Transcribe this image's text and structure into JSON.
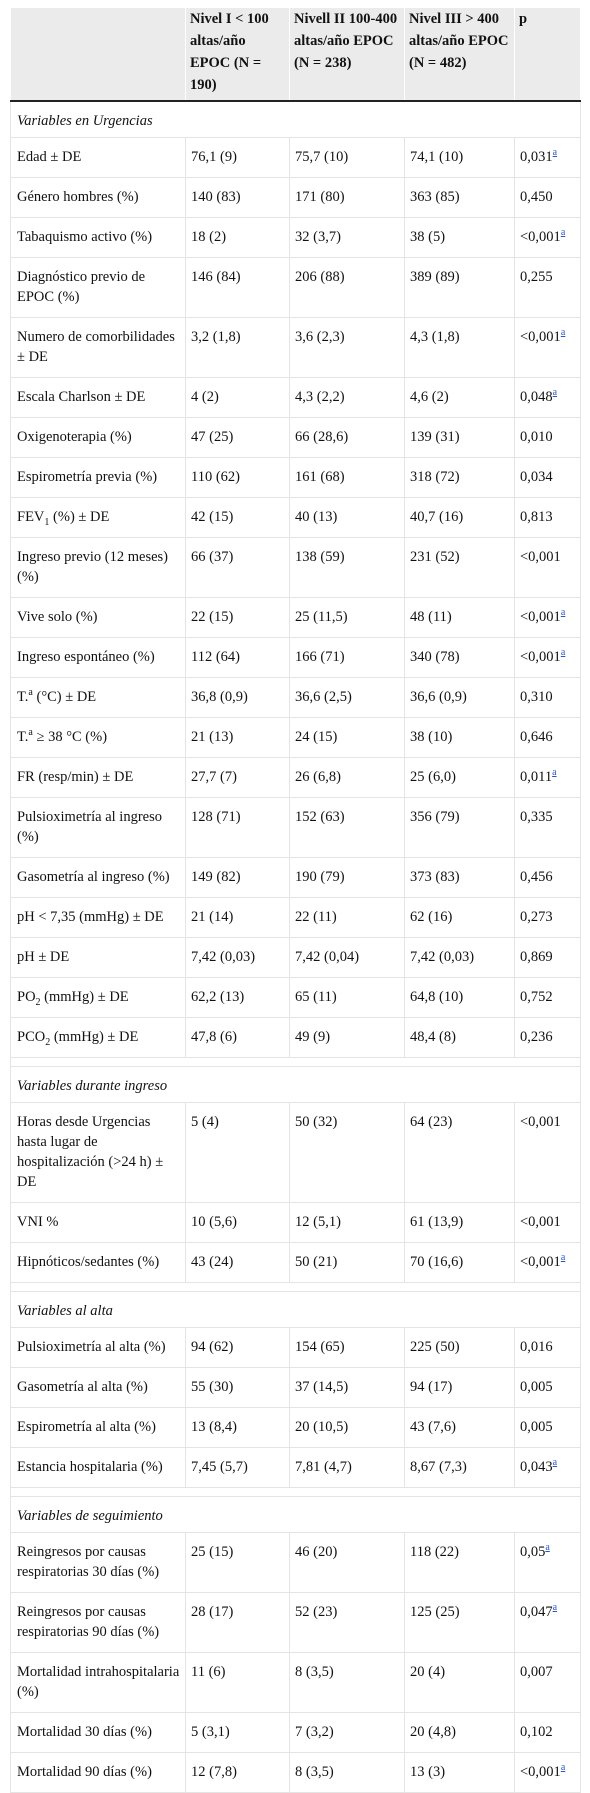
{
  "headers": [
    "",
    "Nivel I < 100 altas/año EPOC (N = 190)",
    "Nivell II 100-400 altas/año EPOC (N = 238)",
    "Nivel III > 400 altas/año EPOC",
    "p"
  ],
  "header_extra": "(N = 482)",
  "sections": [
    {
      "title": "Variables en Urgencias",
      "rows": [
        {
          "label": " Edad ± DE",
          "v": [
            "76,1 (9)",
            "75,7 (10)",
            "74,1 (10)"
          ],
          "p": "0,031",
          "fn": "a"
        },
        {
          "label": " Género hombres (%)",
          "v": [
            "140 (83)",
            "171 (80)",
            "363 (85)"
          ],
          "p": "0,450"
        },
        {
          "label": " Tabaquismo activo (%)",
          "v": [
            "18 (2)",
            "32 (3,7)",
            "38 (5)"
          ],
          "p": "<0,001",
          "fn": "a"
        },
        {
          "label": " Diagnóstico previo de EPOC (%)",
          "v": [
            "146 (84)",
            "206 (88)",
            "389 (89)"
          ],
          "p": "0,255"
        },
        {
          "label": " Numero de comorbilidades ± DE",
          "v": [
            "3,2 (1,8)",
            "3,6 (2,3)",
            "4,3 (1,8)"
          ],
          "p": "<0,001",
          "fn": "a"
        },
        {
          "label": " Escala Charlson ± DE",
          "v": [
            "4 (2)",
            "4,3 (2,2)",
            "4,6 (2)"
          ],
          "p": "0,048",
          "fn": "a"
        },
        {
          "label": " Oxigenoterapia (%)",
          "v": [
            "47 (25)",
            "66 (28,6)",
            "139 (31)"
          ],
          "p": "0,010"
        },
        {
          "label": " Espirometría previa (%)",
          "v": [
            "110 (62)",
            "161 (68)",
            "318 (72)"
          ],
          "p": "0,034"
        },
        {
          "label": " FEV",
          "sub": "1",
          "tail": " (%) ± DE",
          "v": [
            "42 (15)",
            "40 (13)",
            "40,7 (16)"
          ],
          "p": "0,813"
        },
        {
          "label": " Ingreso previo (12 meses) (%)",
          "v": [
            "66 (37)",
            "138 (59)",
            "231 (52)"
          ],
          "p": "<0,001"
        },
        {
          "label": " Vive solo (%)",
          "v": [
            "22 (15)",
            "25 (11,5)",
            "48 (11)"
          ],
          "p": "<0,001",
          "fn": "a"
        },
        {
          "label": " Ingreso espontáneo (%)",
          "v": [
            "112 (64)",
            "166 (71)",
            "340 (78)"
          ],
          "p": "<0,001",
          "fn": "a"
        },
        {
          "label": " T.",
          "sup": "a",
          "tail": " (°C) ± DE",
          "v": [
            "36,8 (0,9)",
            "36,6 (2,5)",
            "36,6 (0,9)"
          ],
          "p": "0,310"
        },
        {
          "label": " T.",
          "sup": "a",
          "tail": " ≥ 38 °C (%)",
          "v": [
            "21 (13)",
            "24 (15)",
            "38 (10)"
          ],
          "p": "0,646"
        },
        {
          "label": " FR (resp/min) ± DE",
          "v": [
            "27,7 (7)",
            "26 (6,8)",
            "25 (6,0)"
          ],
          "p": "0,011",
          "fn": "a"
        },
        {
          "label": " Pulsioximetría al ingreso (%)",
          "v": [
            "128 (71)",
            "152 (63)",
            "356 (79)"
          ],
          "p": "0,335"
        },
        {
          "label": " Gasometría al ingreso (%)",
          "v": [
            "149 (82)",
            "190 (79)",
            "373 (83)"
          ],
          "p": "0,456"
        },
        {
          "label": " pH < 7,35 (mmHg) ± DE",
          "v": [
            "21 (14)",
            "22 (11)",
            "62 (16)"
          ],
          "p": "0,273"
        },
        {
          "label": " pH ± DE",
          "v": [
            "7,42 (0,03)",
            "7,42 (0,04)",
            "7,42 (0,03)"
          ],
          "p": "0,869"
        },
        {
          "label": " PO",
          "sub": "2",
          "tail": " (mmHg) ± DE",
          "v": [
            "62,2 (13)",
            "65 (11)",
            "64,8 (10)"
          ],
          "p": "0,752"
        },
        {
          "label": " PCO",
          "sub": "2",
          "tail": " (mmHg) ± DE",
          "v": [
            "47,8 (6)",
            "49 (9)",
            "48,4 (8)"
          ],
          "p": "0,236"
        }
      ]
    },
    {
      "title": "Variables durante ingreso",
      "rows": [
        {
          "label": " Horas desde Urgencias hasta lugar de hospitalización (>24 h) ± DE",
          "v": [
            "5 (4)",
            "50 (32)",
            "64 (23)"
          ],
          "p": "<0,001"
        },
        {
          "label": " VNI %",
          "v": [
            "10 (5,6)",
            "12 (5,1)",
            "61 (13,9)"
          ],
          "p": "<0,001"
        },
        {
          "label": " Hipnóticos/sedantes (%)",
          "v": [
            "43 (24)",
            "50 (21)",
            "70 (16,6)"
          ],
          "p": "<0,001",
          "fn": "a"
        }
      ]
    },
    {
      "title": "Variables al alta",
      "rows": [
        {
          "label": " Pulsioximetría al alta (%)",
          "v": [
            "94 (62)",
            "154 (65)",
            "225 (50)"
          ],
          "p": "0,016"
        },
        {
          "label": " Gasometría al alta (%)",
          "v": [
            "55 (30)",
            "37 (14,5)",
            "94 (17)"
          ],
          "p": "0,005"
        },
        {
          "label": " Espirometría al alta (%)",
          "v": [
            "13 (8,4)",
            "20 (10,5)",
            "43 (7,6)"
          ],
          "p": "0,005"
        },
        {
          "label": " Estancia hospitalaria (%)",
          "v": [
            "7,45 (5,7)",
            "7,81 (4,7)",
            "8,67 (7,3)"
          ],
          "p": "0,043",
          "fn": "a"
        }
      ]
    },
    {
      "title": "Variables de seguimiento",
      "rows": [
        {
          "label": " Reingresos por causas respiratorias 30 días (%)",
          "v": [
            "25 (15)",
            "46 (20)",
            "118 (22)"
          ],
          "p": "0,05",
          "fn": "a"
        },
        {
          "label": " Reingresos por causas respiratorias 90 días (%)",
          "v": [
            "28 (17)",
            "52 (23)",
            "125 (25)"
          ],
          "p": "0,047",
          "fn": "a"
        },
        {
          "label": " Mortalidad intrahospitalaria (%)",
          "v": [
            "11 (6)",
            "8 (3,5)",
            "20 (4)"
          ],
          "p": "0,007"
        },
        {
          "label": " Mortalidad 30 días (%)",
          "v": [
            "5 (3,1)",
            "7 (3,2)",
            "20 (4,8)"
          ],
          "p": "0,102"
        },
        {
          "label": " Mortalidad 90 días (%)",
          "v": [
            "12 (7,8)",
            "8 (3,5)",
            "13 (3)"
          ],
          "p": "<0,001",
          "fn": "a"
        }
      ]
    }
  ]
}
